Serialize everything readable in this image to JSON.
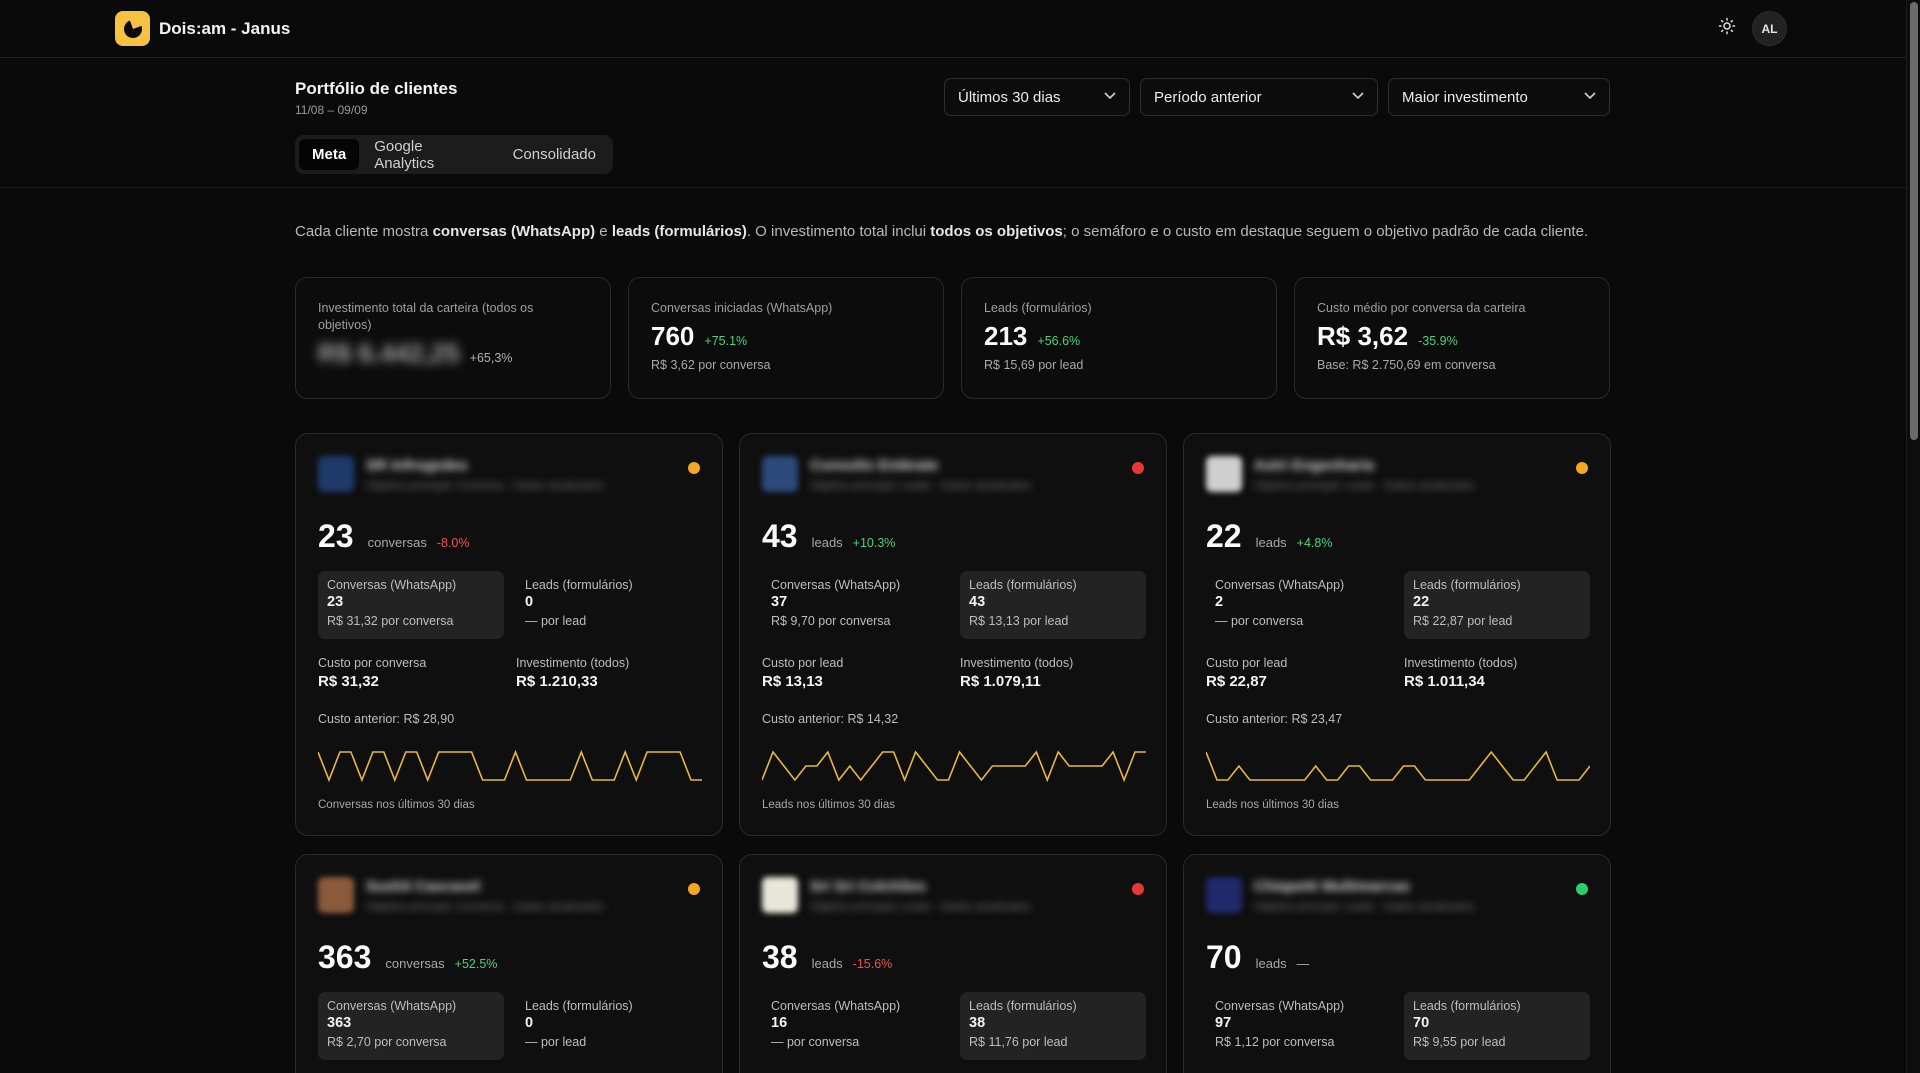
{
  "app": {
    "title": "Dois:am - Janus",
    "avatar": "AL"
  },
  "header": {
    "title": "Portfólio de clientes",
    "date_range": "11/08 – 09/09",
    "filters": {
      "period": "Últimos 30 dias",
      "compare": "Período anterior",
      "sort": "Maior investimento"
    },
    "tabs": [
      "Meta",
      "Google Analytics",
      "Consolidado"
    ],
    "active_tab": "Meta"
  },
  "notice": {
    "p1": "Cada cliente mostra ",
    "b1": "conversas (WhatsApp)",
    "p2": " e ",
    "b2": "leads (formulários)",
    "p3": ". O investimento total inclui ",
    "b3": "todos os objetivos",
    "p4": "; o semáforo e o custo em destaque seguem o objetivo padrão de cada cliente."
  },
  "kpis": [
    {
      "label": "Investimento total da carteira (todos os objetivos)",
      "value": "R$ 6.442,25",
      "delta": "+65,3%",
      "sub": ""
    },
    {
      "label": "Conversas iniciadas (WhatsApp)",
      "value": "760",
      "delta": "+75.1%",
      "sub": "R$ 3,62 por conversa"
    },
    {
      "label": "Leads (formulários)",
      "value": "213",
      "delta": "+56.6%",
      "sub": "R$ 15,69 por lead"
    },
    {
      "label": "Custo médio por conversa da carteira",
      "value": "R$ 3,62",
      "delta": "-35.9%",
      "sub": "Base: R$ 2.750,69 em conversa"
    }
  ],
  "clients": [
    {
      "name": "SR Infrogedes",
      "meta": "Objetivo principal: Conversa · Dados atualizados",
      "status_color": "#f5a623",
      "logo_color": "#1e3a6b",
      "main_value": "23",
      "main_unit": "conversas",
      "main_delta": "-8.0%",
      "delta_type": "neg",
      "conv_label": "Conversas (WhatsApp)",
      "conv_value": "23",
      "conv_cost": "R$ 31,32 por conversa",
      "lead_label": "Leads (formulários)",
      "lead_value": "0",
      "lead_cost": "— por lead",
      "highlight": "conv",
      "cost_label": "Custo por conversa",
      "cost_value": "R$ 31,32",
      "inv_label": "Investimento (todos)",
      "inv_value": "R$ 1.210,33",
      "prev": "Custo anterior: R$ 28,90",
      "caption": "Conversas nos últimos 30 dias",
      "spark": [
        1,
        0,
        1,
        1,
        0,
        1,
        1,
        0,
        1,
        1,
        0,
        1,
        1,
        1,
        1,
        0,
        0,
        0,
        1,
        0,
        0,
        0,
        0,
        0,
        1,
        0,
        0,
        0,
        1,
        0,
        1,
        1,
        1,
        1,
        0,
        0
      ]
    },
    {
      "name": "Consolio Embrate",
      "meta": "Objetivo principal: Leads · Dados atualizados",
      "status_color": "#e53935",
      "logo_color": "#2b4a7a",
      "main_value": "43",
      "main_unit": "leads",
      "main_delta": "+10.3%",
      "delta_type": "pos",
      "conv_label": "Conversas (WhatsApp)",
      "conv_value": "37",
      "conv_cost": "R$ 9,70 por conversa",
      "lead_label": "Leads (formulários)",
      "lead_value": "43",
      "lead_cost": "R$ 13,13 por lead",
      "highlight": "lead",
      "cost_label": "Custo por lead",
      "cost_value": "R$ 13,13",
      "inv_label": "Investimento (todos)",
      "inv_value": "R$ 1.079,11",
      "prev": "Custo anterior: R$ 14,32",
      "caption": "Leads nos últimos 30 dias",
      "spark": [
        0,
        1,
        0.5,
        0,
        0.5,
        0.5,
        1,
        0,
        0.5,
        0,
        0.5,
        1,
        1,
        0,
        1,
        0.5,
        0,
        0,
        1,
        0.5,
        0,
        0.5,
        0.5,
        0.5,
        0.5,
        1,
        0,
        1,
        0.5,
        0.5,
        0.5,
        0.5,
        1,
        0,
        1,
        1
      ]
    },
    {
      "name": "Astri Engenharia",
      "meta": "Objetivo principal: Leads · Dados atualizados",
      "status_color": "#f5a623",
      "logo_color": "#cfcfcf",
      "main_value": "22",
      "main_unit": "leads",
      "main_delta": "+4.8%",
      "delta_type": "pos",
      "conv_label": "Conversas (WhatsApp)",
      "conv_value": "2",
      "conv_cost": "— por conversa",
      "lead_label": "Leads (formulários)",
      "lead_value": "22",
      "lead_cost": "R$ 22,87 por lead",
      "highlight": "lead",
      "cost_label": "Custo por lead",
      "cost_value": "R$ 22,87",
      "inv_label": "Investimento (todos)",
      "inv_value": "R$ 1.011,34",
      "prev": "Custo anterior: R$ 23,47",
      "caption": "Leads nos últimos 30 dias",
      "spark": [
        1,
        0,
        0,
        0.5,
        0,
        0,
        0,
        0,
        0,
        0,
        0.5,
        0,
        0,
        0.5,
        0.5,
        0,
        0,
        0,
        0.5,
        0.5,
        0,
        0,
        0,
        0,
        0,
        0.5,
        1,
        0.5,
        0,
        0,
        0.5,
        1,
        0,
        0,
        0,
        0.5
      ]
    },
    {
      "name": "SushiI Cascavel",
      "meta": "Objetivo principal: Conversa · Dados atualizados",
      "status_color": "#f5a623",
      "logo_color": "#8b5a3c",
      "main_value": "363",
      "main_unit": "conversas",
      "main_delta": "+52.5%",
      "delta_type": "pos",
      "conv_label": "Conversas (WhatsApp)",
      "conv_value": "363",
      "conv_cost": "R$ 2,70 por conversa",
      "lead_label": "Leads (formulários)",
      "lead_value": "0",
      "lead_cost": "— por lead",
      "highlight": "conv"
    },
    {
      "name": "Sri Sri Colchões",
      "meta": "Objetivo principal: Leads · Dados atualizados",
      "status_color": "#e53935",
      "logo_color": "#e8e8d8",
      "main_value": "38",
      "main_unit": "leads",
      "main_delta": "-15.6%",
      "delta_type": "neg",
      "conv_label": "Conversas (WhatsApp)",
      "conv_value": "16",
      "conv_cost": "— por conversa",
      "lead_label": "Leads (formulários)",
      "lead_value": "38",
      "lead_cost": "R$ 11,76 por lead",
      "highlight": "lead"
    },
    {
      "name": "Chiapetti Multimarcas",
      "meta": "Objetivo principal: Leads · Dados atualizados",
      "status_color": "#2ecc71",
      "logo_color": "#1f2a6b",
      "main_value": "70",
      "main_unit": "leads",
      "main_delta": "—",
      "delta_type": "neutral",
      "conv_label": "Conversas (WhatsApp)",
      "conv_value": "97",
      "conv_cost": "R$ 1,12 por conversa",
      "lead_label": "Leads (formulários)",
      "lead_value": "70",
      "lead_cost": "R$ 9,55 por lead",
      "highlight": "lead"
    }
  ],
  "colors": {
    "accent": "#f5c242",
    "spark": "#e7b83a",
    "positive": "#4fd07a",
    "negative": "#ef5350"
  }
}
